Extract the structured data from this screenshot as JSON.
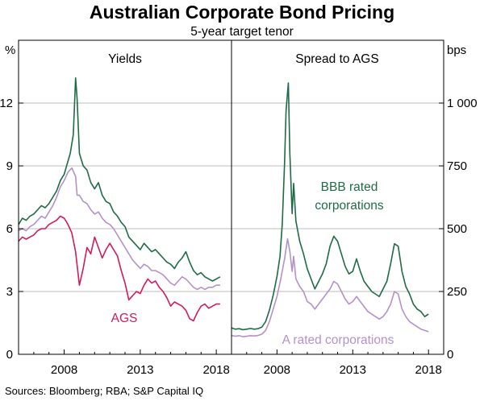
{
  "chart_data": {
    "type": "line",
    "title": "Australian Corporate Bond Pricing",
    "subtitle": "5-year target tenor",
    "source": "Sources: Bloomberg; RBA; S&P Capital IQ",
    "left_axis": {
      "unit": "%",
      "ylim": [
        0,
        15
      ],
      "ticks": [
        0,
        3,
        6,
        9,
        12
      ],
      "tick_labels": [
        "0",
        "3",
        "6",
        "9",
        "12"
      ]
    },
    "right_axis": {
      "unit": "bps",
      "ylim": [
        0,
        1250
      ],
      "ticks": [
        0,
        250,
        500,
        750,
        1000
      ],
      "tick_labels": [
        "0",
        "250",
        "500",
        "750",
        "1 000"
      ]
    },
    "x_ticks": [
      2008,
      2013,
      2018
    ],
    "x_tick_labels": [
      "2008",
      "2013",
      "2018"
    ],
    "x_range": [
      2005,
      2019
    ],
    "panels": [
      {
        "title": "Yields",
        "axis": "left",
        "series": [
          {
            "name": "BBB rated corporations",
            "color": "#1e6b45",
            "x": [
              2005.0,
              2005.25,
              2005.5,
              2005.75,
              2006.0,
              2006.25,
              2006.5,
              2006.75,
              2007.0,
              2007.25,
              2007.5,
              2007.75,
              2008.0,
              2008.2,
              2008.4,
              2008.6,
              2008.75,
              2008.85,
              2009.0,
              2009.25,
              2009.5,
              2009.75,
              2010.0,
              2010.25,
              2010.5,
              2010.75,
              2011.0,
              2011.25,
              2011.5,
              2011.75,
              2012.0,
              2012.25,
              2012.5,
              2012.75,
              2013.0,
              2013.25,
              2013.5,
              2013.75,
              2014.0,
              2014.25,
              2014.5,
              2014.75,
              2015.0,
              2015.25,
              2015.5,
              2015.75,
              2016.0,
              2016.25,
              2016.5,
              2016.75,
              2017.0,
              2017.25,
              2017.5,
              2017.75,
              2018.0,
              2018.25
            ],
            "values": [
              6.2,
              6.5,
              6.4,
              6.6,
              6.7,
              6.9,
              7.1,
              7.0,
              7.2,
              7.5,
              7.8,
              8.3,
              8.6,
              9.1,
              9.6,
              10.5,
              13.2,
              12.2,
              9.6,
              9.0,
              8.8,
              8.2,
              7.9,
              8.2,
              7.6,
              7.3,
              7.2,
              6.8,
              6.6,
              6.3,
              6.1,
              5.6,
              5.4,
              5.2,
              5.0,
              5.3,
              5.1,
              4.9,
              5.0,
              4.8,
              4.6,
              4.4,
              4.3,
              4.1,
              4.4,
              4.6,
              4.9,
              4.4,
              4.0,
              3.8,
              3.9,
              3.7,
              3.6,
              3.5,
              3.6,
              3.7
            ]
          },
          {
            "name": "A rated corporations",
            "color": "#b491c8",
            "x": [
              2005.0,
              2005.25,
              2005.5,
              2005.75,
              2006.0,
              2006.25,
              2006.5,
              2006.75,
              2007.0,
              2007.25,
              2007.5,
              2007.75,
              2008.0,
              2008.25,
              2008.5,
              2008.75,
              2008.85,
              2009.0,
              2009.25,
              2009.5,
              2009.75,
              2010.0,
              2010.25,
              2010.5,
              2010.75,
              2011.0,
              2011.25,
              2011.5,
              2011.75,
              2012.0,
              2012.25,
              2012.5,
              2012.75,
              2013.0,
              2013.25,
              2013.5,
              2013.75,
              2014.0,
              2014.25,
              2014.5,
              2014.75,
              2015.0,
              2015.25,
              2015.5,
              2015.75,
              2016.0,
              2016.25,
              2016.5,
              2016.75,
              2017.0,
              2017.25,
              2017.5,
              2017.75,
              2018.0,
              2018.25
            ],
            "values": [
              5.9,
              6.0,
              5.9,
              6.1,
              6.2,
              6.4,
              6.6,
              6.5,
              6.8,
              7.1,
              7.5,
              8.0,
              8.3,
              8.7,
              8.9,
              8.5,
              7.6,
              7.6,
              7.3,
              7.2,
              6.9,
              6.7,
              6.8,
              6.5,
              6.3,
              6.2,
              6.0,
              5.7,
              5.4,
              5.1,
              4.8,
              4.5,
              4.3,
              4.1,
              4.3,
              4.2,
              4.0,
              4.0,
              3.9,
              3.8,
              3.6,
              3.4,
              3.3,
              3.5,
              3.7,
              3.6,
              3.4,
              3.2,
              3.1,
              3.2,
              3.1,
              3.2,
              3.2,
              3.3,
              3.3
            ]
          },
          {
            "name": "AGS",
            "color": "#d31a5c",
            "x": [
              2005.0,
              2005.25,
              2005.5,
              2005.75,
              2006.0,
              2006.25,
              2006.5,
              2006.75,
              2007.0,
              2007.25,
              2007.5,
              2007.75,
              2008.0,
              2008.25,
              2008.5,
              2008.75,
              2009.0,
              2009.25,
              2009.5,
              2009.75,
              2010.0,
              2010.25,
              2010.5,
              2010.75,
              2011.0,
              2011.25,
              2011.5,
              2011.75,
              2012.0,
              2012.25,
              2012.5,
              2012.75,
              2013.0,
              2013.25,
              2013.5,
              2013.75,
              2014.0,
              2014.25,
              2014.5,
              2014.75,
              2015.0,
              2015.25,
              2015.5,
              2015.75,
              2016.0,
              2016.25,
              2016.5,
              2016.75,
              2017.0,
              2017.25,
              2017.5,
              2017.75,
              2018.0,
              2018.25
            ],
            "values": [
              5.4,
              5.6,
              5.5,
              5.6,
              5.7,
              5.9,
              6.0,
              6.0,
              6.2,
              6.3,
              6.4,
              6.6,
              6.5,
              6.2,
              5.8,
              4.9,
              3.3,
              4.1,
              5.1,
              4.8,
              5.6,
              5.1,
              4.6,
              5.0,
              5.3,
              5.0,
              4.7,
              4.0,
              3.4,
              2.6,
              2.8,
              3.0,
              2.9,
              3.3,
              3.6,
              3.4,
              3.5,
              3.2,
              3.0,
              2.7,
              2.3,
              2.5,
              2.4,
              2.3,
              2.1,
              1.7,
              1.6,
              2.0,
              2.3,
              2.4,
              2.2,
              2.3,
              2.4,
              2.4
            ]
          }
        ],
        "labels": [
          {
            "text": "AGS",
            "color": "#d31a5c"
          }
        ]
      },
      {
        "title": "Spread to AGS",
        "axis": "right",
        "series": [
          {
            "name": "BBB rated corporations",
            "color": "#1e6b45",
            "x": [
              2005.0,
              2005.25,
              2005.5,
              2005.75,
              2006.0,
              2006.25,
              2006.5,
              2006.75,
              2007.0,
              2007.25,
              2007.5,
              2007.75,
              2008.0,
              2008.2,
              2008.35,
              2008.5,
              2008.6,
              2008.75,
              2008.85,
              2009.0,
              2009.1,
              2009.25,
              2009.5,
              2009.75,
              2010.0,
              2010.25,
              2010.5,
              2010.75,
              2011.0,
              2011.25,
              2011.5,
              2011.75,
              2012.0,
              2012.25,
              2012.5,
              2012.75,
              2013.0,
              2013.25,
              2013.5,
              2013.75,
              2014.0,
              2014.25,
              2014.5,
              2014.75,
              2015.0,
              2015.25,
              2015.5,
              2015.75,
              2016.0,
              2016.25,
              2016.5,
              2016.75,
              2017.0,
              2017.25,
              2017.5,
              2017.75,
              2018.0
            ],
            "values": [
              105,
              100,
              102,
              98,
              100,
              103,
              100,
              102,
              108,
              130,
              175,
              235,
              310,
              390,
              520,
              760,
              970,
              1080,
              800,
              560,
              680,
              530,
              450,
              400,
              340,
              300,
              260,
              290,
              320,
              360,
              430,
              470,
              450,
              400,
              350,
              320,
              330,
              380,
              330,
              290,
              270,
              250,
              240,
              230,
              260,
              290,
              360,
              440,
              430,
              330,
              270,
              240,
              200,
              180,
              170,
              150,
              160
            ]
          },
          {
            "name": "A rated corporations",
            "color": "#b491c8",
            "x": [
              2005.0,
              2005.25,
              2005.5,
              2005.75,
              2006.0,
              2006.25,
              2006.5,
              2006.75,
              2007.0,
              2007.25,
              2007.5,
              2007.75,
              2008.0,
              2008.25,
              2008.5,
              2008.7,
              2008.85,
              2009.0,
              2009.1,
              2009.25,
              2009.5,
              2009.75,
              2010.0,
              2010.25,
              2010.5,
              2010.75,
              2011.0,
              2011.25,
              2011.5,
              2011.75,
              2012.0,
              2012.25,
              2012.5,
              2012.75,
              2013.0,
              2013.25,
              2013.5,
              2013.75,
              2014.0,
              2014.25,
              2014.5,
              2014.75,
              2015.0,
              2015.25,
              2015.5,
              2015.75,
              2016.0,
              2016.25,
              2016.5,
              2016.75,
              2017.0,
              2017.25,
              2017.5,
              2017.75,
              2018.0
            ],
            "values": [
              75,
              72,
              74,
              70,
              72,
              74,
              73,
              75,
              80,
              95,
              130,
              180,
              230,
              300,
              380,
              460,
              410,
              330,
              390,
              300,
              270,
              250,
              210,
              200,
              180,
              200,
              220,
              240,
              260,
              290,
              280,
              250,
              220,
              200,
              210,
              230,
              210,
              190,
              170,
              160,
              150,
              140,
              150,
              170,
              200,
              250,
              240,
              180,
              150,
              130,
              120,
              110,
              100,
              95,
              90
            ]
          }
        ],
        "labels": [
          {
            "text": "BBB rated",
            "color": "#1e6b45"
          },
          {
            "text": "corporations",
            "color": "#1e6b45"
          },
          {
            "text": "A rated corporations",
            "color": "#b491c8"
          }
        ]
      }
    ]
  }
}
